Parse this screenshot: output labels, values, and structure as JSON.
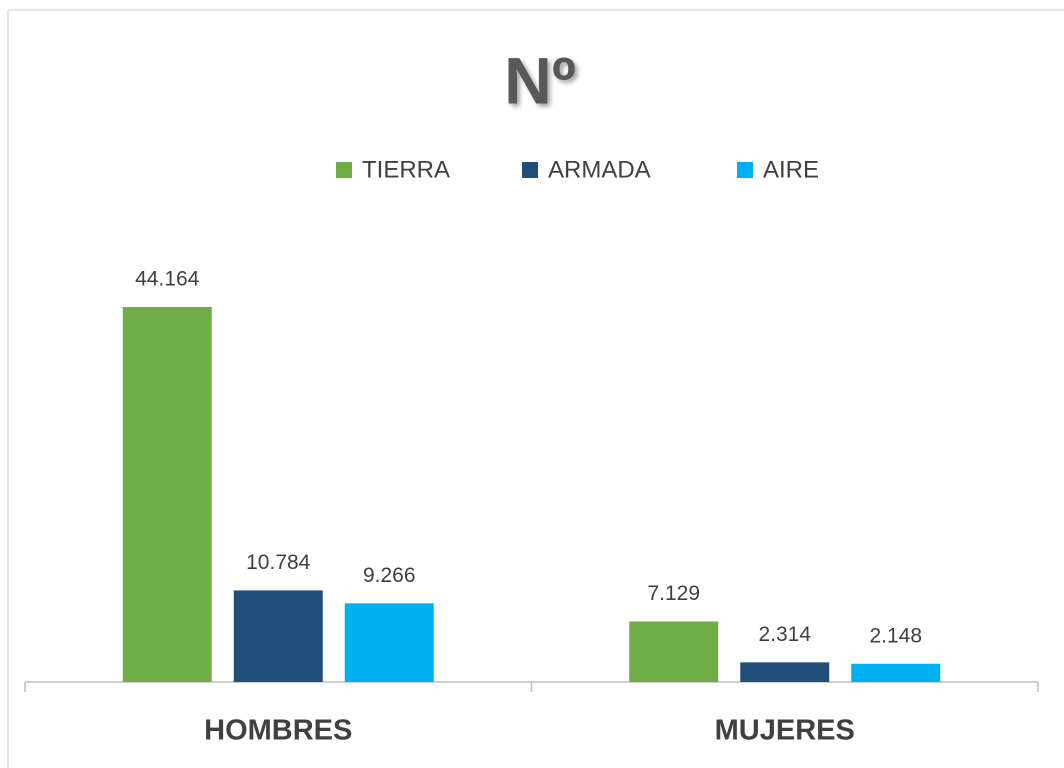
{
  "chart_data": {
    "type": "bar",
    "title": "Nº",
    "categories": [
      "HOMBRES",
      "MUJERES"
    ],
    "series": [
      {
        "name": "TIERRA",
        "color": "#70ad47",
        "values": [
          44164,
          7129
        ],
        "value_labels": [
          "44.164",
          "7.129"
        ]
      },
      {
        "name": "ARMADA",
        "color": "#1f4e79",
        "values": [
          10784,
          2314
        ],
        "value_labels": [
          "10.784",
          "2.314"
        ]
      },
      {
        "name": "AIRE",
        "color": "#00b0f0",
        "values": [
          9266,
          2148
        ],
        "value_labels": [
          "9.266",
          "2.148"
        ]
      }
    ],
    "legend": "top"
  }
}
